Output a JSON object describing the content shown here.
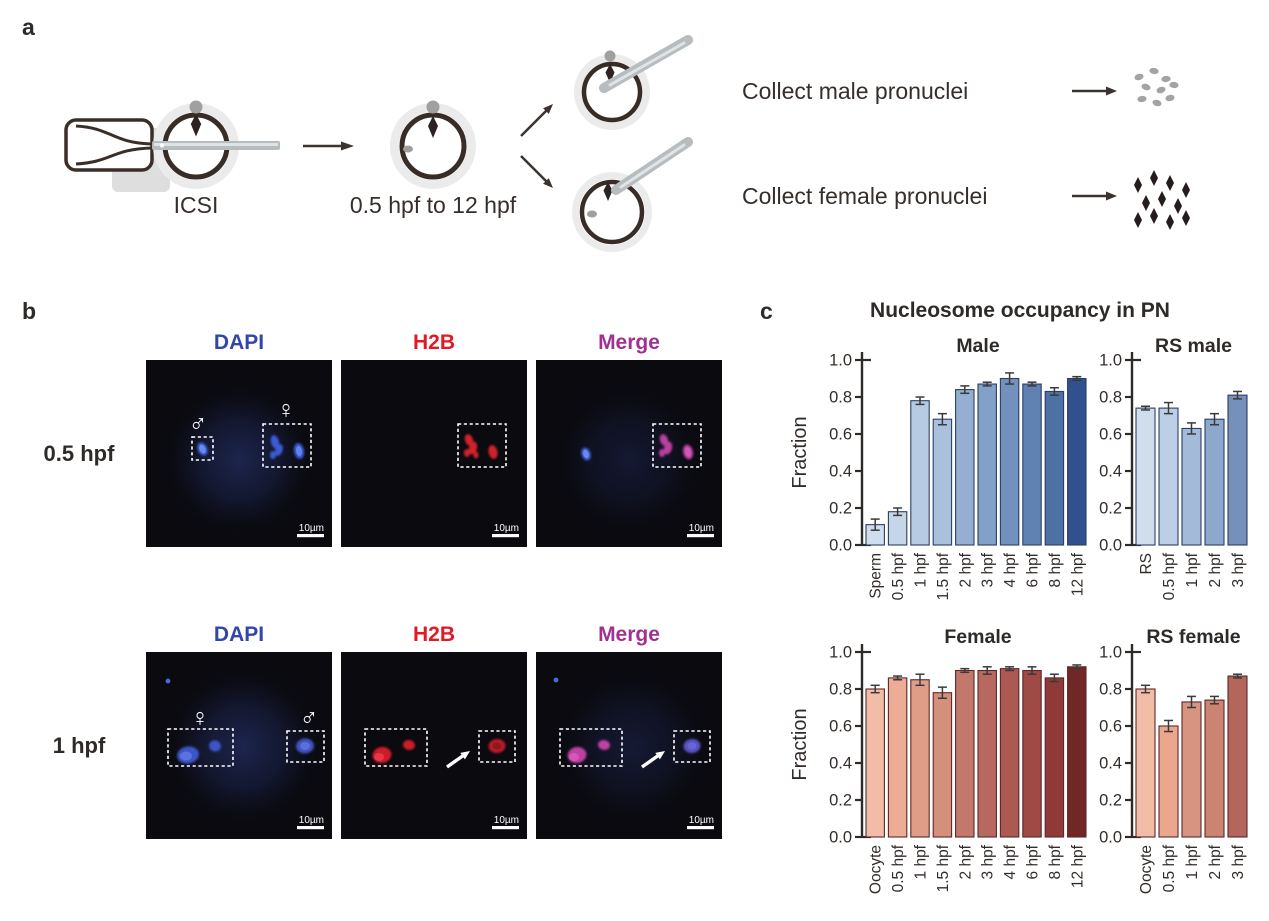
{
  "panels": {
    "a_label": "a",
    "b_label": "b",
    "c_label": "c"
  },
  "panel_a": {
    "icsi_label": "ICSI",
    "timeline_label": "0.5 hpf to 12 hpf",
    "collect_male_label": "Collect male pronuclei",
    "collect_female_label": "Collect female pronuclei"
  },
  "panel_b": {
    "channels": [
      {
        "label": "DAPI",
        "color": "#3347a8"
      },
      {
        "label": "H2B",
        "color": "#e01b24"
      },
      {
        "label": "Merge",
        "color": "#a2308f"
      }
    ],
    "rows": [
      {
        "time_label": "0.5 hpf"
      },
      {
        "time_label": "1 hpf"
      }
    ],
    "scale_bar_label": "10µm",
    "male_symbol": "♂",
    "female_symbol": "♀"
  },
  "panel_c": {
    "title": "Nucleosome occupancy in PN",
    "axis_color": "#2e2a28",
    "text_color": "#332d2a"
  },
  "chart_data": [
    {
      "type": "bar",
      "title": "Male",
      "ylabel": "Fraction",
      "ylim": [
        0,
        1.0
      ],
      "yticks": [
        0.0,
        0.2,
        0.4,
        0.6,
        0.8,
        1.0
      ],
      "categories": [
        "Sperm",
        "0.5 hpf",
        "1 hpf",
        "1.5 hpf",
        "2 hpf",
        "3 hpf",
        "4 hpf",
        "6 hpf",
        "8 hpf",
        "12 hpf"
      ],
      "values": [
        0.11,
        0.18,
        0.78,
        0.68,
        0.84,
        0.87,
        0.9,
        0.87,
        0.83,
        0.9
      ],
      "errors": [
        0.03,
        0.02,
        0.02,
        0.03,
        0.02,
        0.01,
        0.03,
        0.01,
        0.02,
        0.01
      ],
      "bar_colors": [
        "#cfdded",
        "#c6d6e9",
        "#b7cbe3",
        "#aac1dd",
        "#94afd2",
        "#82a1c8",
        "#7292bd",
        "#6082b2",
        "#4d70a5",
        "#31508e"
      ],
      "bar_stroke": "#2c3e63"
    },
    {
      "type": "bar",
      "title": "RS male",
      "ylabel": "",
      "ylim": [
        0,
        1.0
      ],
      "yticks": [
        0.0,
        0.2,
        0.4,
        0.6,
        0.8,
        1.0
      ],
      "categories": [
        "RS",
        "0.5 hpf",
        "1 hpf",
        "2 hpf",
        "3 hpf"
      ],
      "values": [
        0.74,
        0.74,
        0.63,
        0.68,
        0.81
      ],
      "errors": [
        0.01,
        0.03,
        0.03,
        0.03,
        0.02
      ],
      "bar_colors": [
        "#cfdded",
        "#bccfe6",
        "#a3bad9",
        "#8da8cd",
        "#7590b9"
      ],
      "bar_stroke": "#2c3e63"
    },
    {
      "type": "bar",
      "title": "Female",
      "ylabel": "Fraction",
      "ylim": [
        0,
        1.0
      ],
      "yticks": [
        0.0,
        0.2,
        0.4,
        0.6,
        0.8,
        1.0
      ],
      "categories": [
        "Oocyte",
        "0.5 hpf",
        "1 hpf",
        "1.5 hpf",
        "2 hpf",
        "3 hpf",
        "4 hpf",
        "6 hpf",
        "8 hpf",
        "12 hpf"
      ],
      "values": [
        0.8,
        0.86,
        0.85,
        0.78,
        0.9,
        0.9,
        0.91,
        0.9,
        0.86,
        0.92
      ],
      "errors": [
        0.02,
        0.01,
        0.03,
        0.03,
        0.01,
        0.02,
        0.01,
        0.02,
        0.02,
        0.01
      ],
      "bar_colors": [
        "#f2bda7",
        "#ecac96",
        "#df9c86",
        "#d4907b",
        "#c3786c",
        "#b8695f",
        "#ac5953",
        "#a04a46",
        "#8f3a39",
        "#722727"
      ],
      "bar_stroke": "#5e2626"
    },
    {
      "type": "bar",
      "title": "RS female",
      "ylabel": "",
      "ylim": [
        0,
        1.0
      ],
      "yticks": [
        0.0,
        0.2,
        0.4,
        0.6,
        0.8,
        1.0
      ],
      "categories": [
        "Oocyte",
        "0.5 hpf",
        "1 hpf",
        "2 hpf",
        "3 hpf"
      ],
      "values": [
        0.8,
        0.6,
        0.73,
        0.74,
        0.87
      ],
      "errors": [
        0.02,
        0.03,
        0.03,
        0.02,
        0.01
      ],
      "bar_colors": [
        "#f2bda7",
        "#eaa78e",
        "#d79481",
        "#cb8471",
        "#b4655c"
      ],
      "bar_stroke": "#5e2626"
    }
  ]
}
